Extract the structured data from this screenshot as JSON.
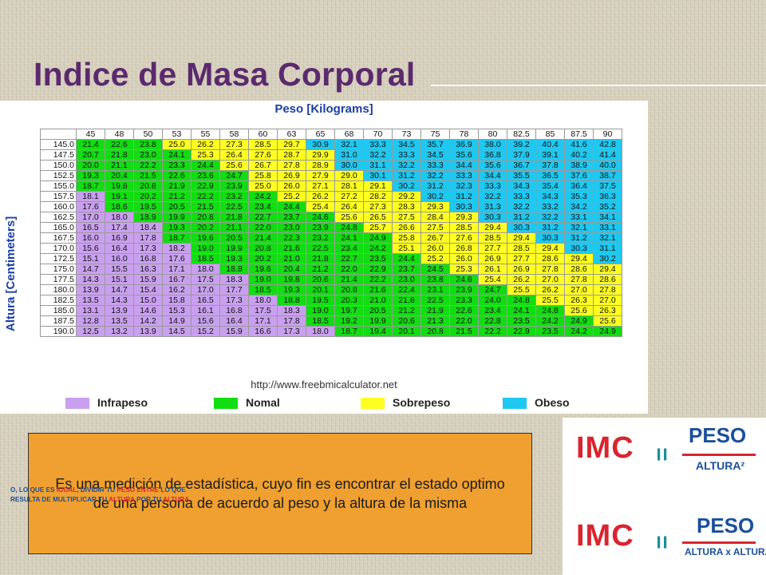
{
  "title": "Indice de Masa Corporal",
  "chart": {
    "header": "Peso [Kilograms]",
    "y_title": "Altura [Centimeters]",
    "source": "http://www.freebmicalculator.net",
    "legend": [
      {
        "label": "Infrapeso",
        "color": "#c9a0ef"
      },
      {
        "label": "Nomal",
        "color": "#12dd12"
      },
      {
        "label": "Sobrepeso",
        "color": "#ffff22"
      },
      {
        "label": "Obeso",
        "color": "#1ec8f0"
      }
    ]
  },
  "chart_data": {
    "type": "table",
    "title": "Peso [Kilograms]",
    "xlabel": "Peso [Kilograms]",
    "ylabel": "Altura [Centimeters]",
    "weights": [
      "45",
      "48",
      "50",
      "53",
      "55",
      "58",
      "60",
      "63",
      "65",
      "68",
      "70",
      "73",
      "75",
      "78",
      "80",
      "82.5",
      "85",
      "87.5",
      "90"
    ],
    "heights": [
      "145.0",
      "147.5",
      "150.0",
      "152.5",
      "155.0",
      "157.5",
      "160.0",
      "162.5",
      "165.0",
      "167.5",
      "170.0",
      "172.5",
      "175.0",
      "177.5",
      "180.0",
      "182.5",
      "185.0",
      "187.5",
      "190.0"
    ],
    "rows": [
      [
        "21.4",
        "22.6",
        "23.8",
        "25.0",
        "26.2",
        "27.3",
        "28.5",
        "29.7",
        "30.9",
        "32.1",
        "33.3",
        "34.5",
        "35.7",
        "36.9",
        "38.0",
        "39.2",
        "40.4",
        "41.6",
        "42.8"
      ],
      [
        "20.7",
        "21.8",
        "23.0",
        "24.1",
        "25.3",
        "26.4",
        "27.6",
        "28.7",
        "29.9",
        "31.0",
        "32.2",
        "33.3",
        "34.5",
        "35.6",
        "36.8",
        "37.9",
        "39.1",
        "40.2",
        "41.4"
      ],
      [
        "20.0",
        "21.1",
        "22.2",
        "23.3",
        "24.4",
        "25.6",
        "26.7",
        "27.8",
        "28.9",
        "30.0",
        "31.1",
        "32.2",
        "33.3",
        "34.4",
        "35.6",
        "36.7",
        "37.8",
        "38.9",
        "40.0"
      ],
      [
        "19.3",
        "20.4",
        "21.5",
        "22.6",
        "23.6",
        "24.7",
        "25.8",
        "26.9",
        "27.9",
        "29.0",
        "30.1",
        "31.2",
        "32.2",
        "33.3",
        "34.4",
        "35.5",
        "36.5",
        "37.6",
        "38.7"
      ],
      [
        "18.7",
        "19.8",
        "20.8",
        "21.9",
        "22.9",
        "23.9",
        "25.0",
        "26.0",
        "27.1",
        "28.1",
        "29.1",
        "30.2",
        "31.2",
        "32.3",
        "33.3",
        "34.3",
        "35.4",
        "36.4",
        "37.5"
      ],
      [
        "18.1",
        "19.1",
        "20.2",
        "21.2",
        "22.2",
        "23.2",
        "24.2",
        "25.2",
        "26.2",
        "27.2",
        "28.2",
        "29.2",
        "30.2",
        "31.2",
        "32.2",
        "33.3",
        "34.3",
        "35.3",
        "36.3"
      ],
      [
        "17.6",
        "18.6",
        "19.5",
        "20.5",
        "21.5",
        "22.5",
        "23.4",
        "24.4",
        "25.4",
        "26.4",
        "27.3",
        "28.3",
        "29.3",
        "30.3",
        "31.3",
        "32.2",
        "33.2",
        "34.2",
        "35.2"
      ],
      [
        "17.0",
        "18.0",
        "18.9",
        "19.9",
        "20.8",
        "21.8",
        "22.7",
        "23.7",
        "24.6",
        "25.6",
        "26.5",
        "27.5",
        "28.4",
        "29.3",
        "30.3",
        "31.2",
        "32.2",
        "33.1",
        "34.1"
      ],
      [
        "16.5",
        "17.4",
        "18.4",
        "19.3",
        "20.2",
        "21.1",
        "22.0",
        "23.0",
        "23.9",
        "24.8",
        "25.7",
        "26.6",
        "27.5",
        "28.5",
        "29.4",
        "30.3",
        "31.2",
        "32.1",
        "33.1"
      ],
      [
        "16.0",
        "16.9",
        "17.8",
        "18.7",
        "19.6",
        "20.5",
        "21.4",
        "22.3",
        "23.2",
        "24.1",
        "24.9",
        "25.8",
        "26.7",
        "27.6",
        "28.5",
        "29.4",
        "30.3",
        "31.2",
        "32.1"
      ],
      [
        "15.6",
        "16.4",
        "17.3",
        "18.2",
        "19.0",
        "19.9",
        "20.8",
        "21.6",
        "22.5",
        "23.4",
        "24.2",
        "25.1",
        "26.0",
        "26.8",
        "27.7",
        "28.5",
        "29.4",
        "30.3",
        "31.1"
      ],
      [
        "15.1",
        "16.0",
        "16.8",
        "17.6",
        "18.5",
        "19.3",
        "20.2",
        "21.0",
        "21.8",
        "22.7",
        "23.5",
        "24.4",
        "25.2",
        "26.0",
        "26.9",
        "27.7",
        "28.6",
        "29.4",
        "30.2"
      ],
      [
        "14.7",
        "15.5",
        "16.3",
        "17.1",
        "18.0",
        "18.8",
        "19.6",
        "20.4",
        "21.2",
        "22.0",
        "22.9",
        "23.7",
        "24.5",
        "25.3",
        "26.1",
        "26.9",
        "27.8",
        "28.6",
        "29.4"
      ],
      [
        "14.3",
        "15.1",
        "15.9",
        "16.7",
        "17.5",
        "18.3",
        "19.0",
        "19.8",
        "20.6",
        "21.4",
        "22.2",
        "23.0",
        "23.8",
        "24.6",
        "25.4",
        "26.2",
        "27.0",
        "27.8",
        "28.6"
      ],
      [
        "13.9",
        "14.7",
        "15.4",
        "16.2",
        "17.0",
        "17.7",
        "18.5",
        "19.3",
        "20.1",
        "20.8",
        "21.6",
        "22.4",
        "23.1",
        "23.9",
        "24.7",
        "25.5",
        "26.2",
        "27.0",
        "27.8"
      ],
      [
        "13.5",
        "14.3",
        "15.0",
        "15.8",
        "16.5",
        "17.3",
        "18.0",
        "18.8",
        "19.5",
        "20.3",
        "21.0",
        "21.8",
        "22.5",
        "23.3",
        "24.0",
        "24.8",
        "25.5",
        "26.3",
        "27.0"
      ],
      [
        "13.1",
        "13.9",
        "14.6",
        "15.3",
        "16.1",
        "16.8",
        "17.5",
        "18.3",
        "19.0",
        "19.7",
        "20.5",
        "21.2",
        "21.9",
        "22.6",
        "23.4",
        "24.1",
        "24.8",
        "25.6",
        "26.3"
      ],
      [
        "12.8",
        "13.5",
        "14.2",
        "14.9",
        "15.6",
        "16.4",
        "17.1",
        "17.8",
        "18.5",
        "19.2",
        "19.9",
        "20.6",
        "21.3",
        "22.0",
        "22.8",
        "23.5",
        "24.2",
        "24.9",
        "25.6"
      ],
      [
        "12.5",
        "13.2",
        "13.9",
        "14.5",
        "15.2",
        "15.9",
        "16.6",
        "17.3",
        "18.0",
        "18.7",
        "19.4",
        "20.1",
        "20.8",
        "21.5",
        "22.2",
        "22.9",
        "23.5",
        "24.2",
        "24.9"
      ]
    ],
    "categories": [
      "Infrapeso",
      "Nomal",
      "Sobrepeso",
      "Obeso"
    ]
  },
  "definition": {
    "text": "Es una medición de estadística, cuyo fin es encontrar el estado optimo de una persona de acuerdo al peso y la altura de la misma"
  },
  "formula": {
    "imc": "IMC",
    "equals": "=",
    "numerator": "PESO",
    "denominator_1": "ALTURA²",
    "denominator_2": "ALTURA x ALTURA",
    "note": {
      "p1": "O, LO QUE ES ",
      "p2": "IGUAL",
      "p3": ", DIVIDIR TU ",
      "p4": "PESO",
      "p5": " ENTRE",
      "p6": " LO QUE RESULTA DE MULTIPLICAR TU ",
      "p7": "ALTURA",
      "p8": " POR TU ",
      "p9": "ALTURA"
    }
  }
}
